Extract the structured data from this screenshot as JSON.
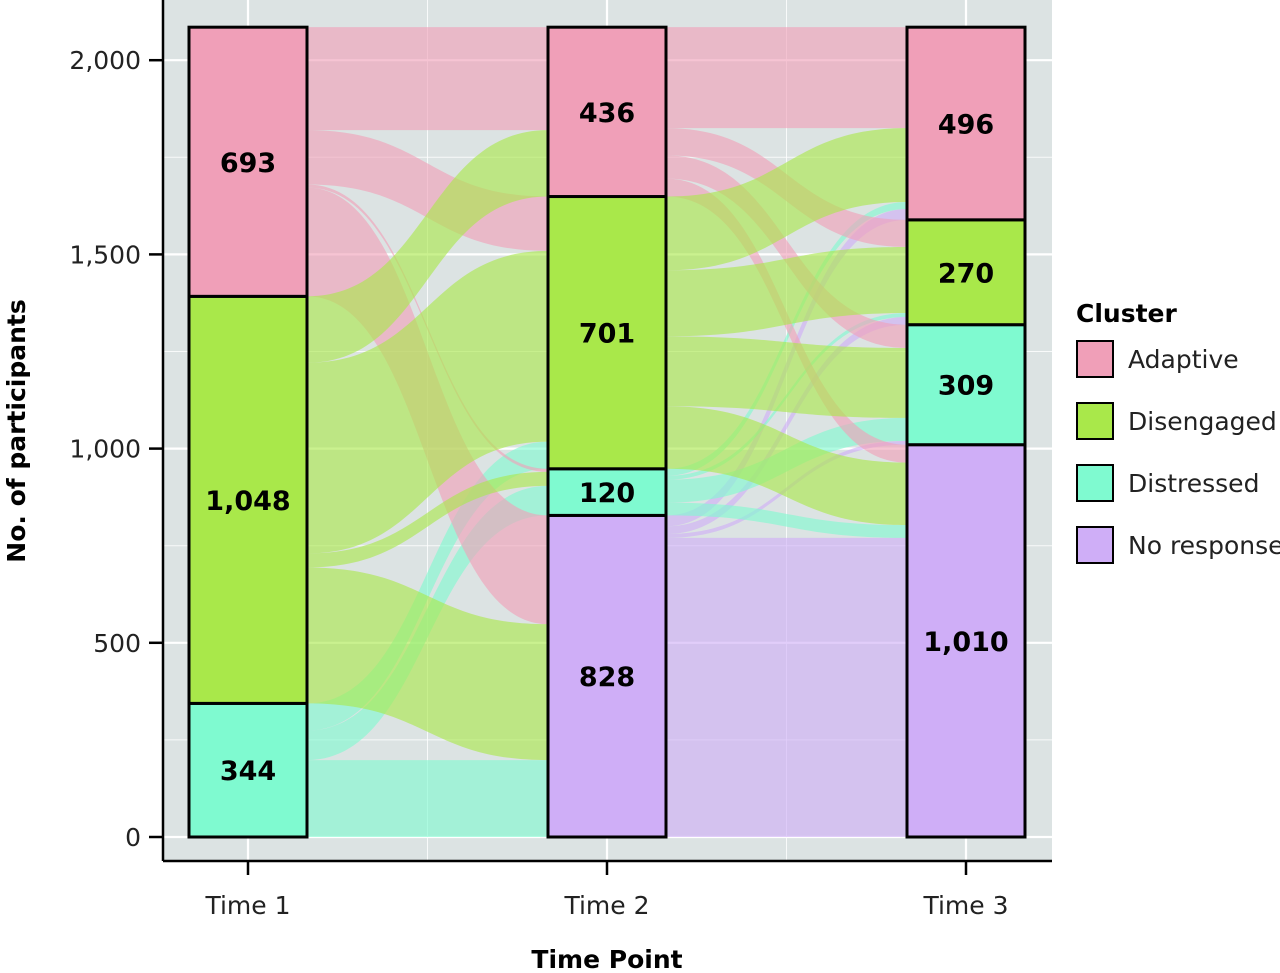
{
  "chart_data": {
    "type": "alluvial",
    "title": "",
    "xlabel": "Time Point",
    "ylabel": "No. of participants",
    "ylim": [
      0,
      2085
    ],
    "yticks": [
      0,
      500,
      1000,
      1500,
      2000
    ],
    "ytick_labels": [
      "0",
      "500",
      "1,000",
      "1,500",
      "2,000"
    ],
    "grid": true,
    "legend_position": "right",
    "legend_title": "Cluster",
    "categories": [
      "Time 1",
      "Time 2",
      "Time 3"
    ],
    "clusters": [
      {
        "name": "Adaptive",
        "color": "#F09FB8"
      },
      {
        "name": "Disengaged",
        "color": "#A9E84A"
      },
      {
        "name": "Distressed",
        "color": "#7FFAD0"
      },
      {
        "name": "No response",
        "color": "#CFAEF7"
      }
    ],
    "stack_order_top_to_bottom": [
      "Adaptive",
      "Disengaged",
      "Distressed",
      "No response"
    ],
    "counts": {
      "Time 1": {
        "Adaptive": 693,
        "Disengaged": 1048,
        "Distressed": 344,
        "No response": 0
      },
      "Time 2": {
        "Adaptive": 436,
        "Disengaged": 701,
        "Distressed": 120,
        "No response": 828
      },
      "Time 3": {
        "Adaptive": 496,
        "Disengaged": 270,
        "Distressed": 309,
        "No response": 1010
      }
    },
    "count_labels": {
      "Time 1": {
        "Adaptive": "693",
        "Disengaged": "1,048",
        "Distressed": "344",
        "No response": ""
      },
      "Time 2": {
        "Adaptive": "436",
        "Disengaged": "701",
        "Distressed": "120",
        "No response": "828"
      },
      "Time 3": {
        "Adaptive": "496",
        "Disengaged": "270",
        "Distressed": "309",
        "No response": "1,010"
      }
    },
    "flows_1_to_2": [
      {
        "from": "Adaptive",
        "to": "Adaptive",
        "value": 265
      },
      {
        "from": "Adaptive",
        "to": "Disengaged",
        "value": 140
      },
      {
        "from": "Adaptive",
        "to": "Distressed",
        "value": 8
      },
      {
        "from": "Adaptive",
        "to": "No response",
        "value": 280
      },
      {
        "from": "Disengaged",
        "to": "Adaptive",
        "value": 171
      },
      {
        "from": "Disengaged",
        "to": "Disengaged",
        "value": 491
      },
      {
        "from": "Disengaged",
        "to": "Distressed",
        "value": 36
      },
      {
        "from": "Disengaged",
        "to": "No response",
        "value": 350
      },
      {
        "from": "Distressed",
        "to": "Disengaged",
        "value": 70
      },
      {
        "from": "Distressed",
        "to": "Distressed",
        "value": 76
      },
      {
        "from": "Distressed",
        "to": "No response",
        "value": 198
      }
    ],
    "flows_2_to_3": [
      {
        "from": "Adaptive",
        "to": "Adaptive",
        "value": 260
      },
      {
        "from": "Adaptive",
        "to": "Disengaged",
        "value": 70
      },
      {
        "from": "Adaptive",
        "to": "Distressed",
        "value": 60
      },
      {
        "from": "Adaptive",
        "to": "No response",
        "value": 46
      },
      {
        "from": "Disengaged",
        "to": "Adaptive",
        "value": 190
      },
      {
        "from": "Disengaged",
        "to": "Disengaged",
        "value": 170
      },
      {
        "from": "Disengaged",
        "to": "Distressed",
        "value": 180
      },
      {
        "from": "Disengaged",
        "to": "No response",
        "value": 161
      },
      {
        "from": "Distressed",
        "to": "Adaptive",
        "value": 18
      },
      {
        "from": "Distressed",
        "to": "Disengaged",
        "value": 10
      },
      {
        "from": "Distressed",
        "to": "Distressed",
        "value": 59
      },
      {
        "from": "Distressed",
        "to": "No response",
        "value": 33
      },
      {
        "from": "No response",
        "to": "Adaptive",
        "value": 28
      },
      {
        "from": "No response",
        "to": "Disengaged",
        "value": 20
      },
      {
        "from": "No response",
        "to": "Distressed",
        "value": 10
      },
      {
        "from": "No response",
        "to": "No response",
        "value": 770
      }
    ]
  }
}
